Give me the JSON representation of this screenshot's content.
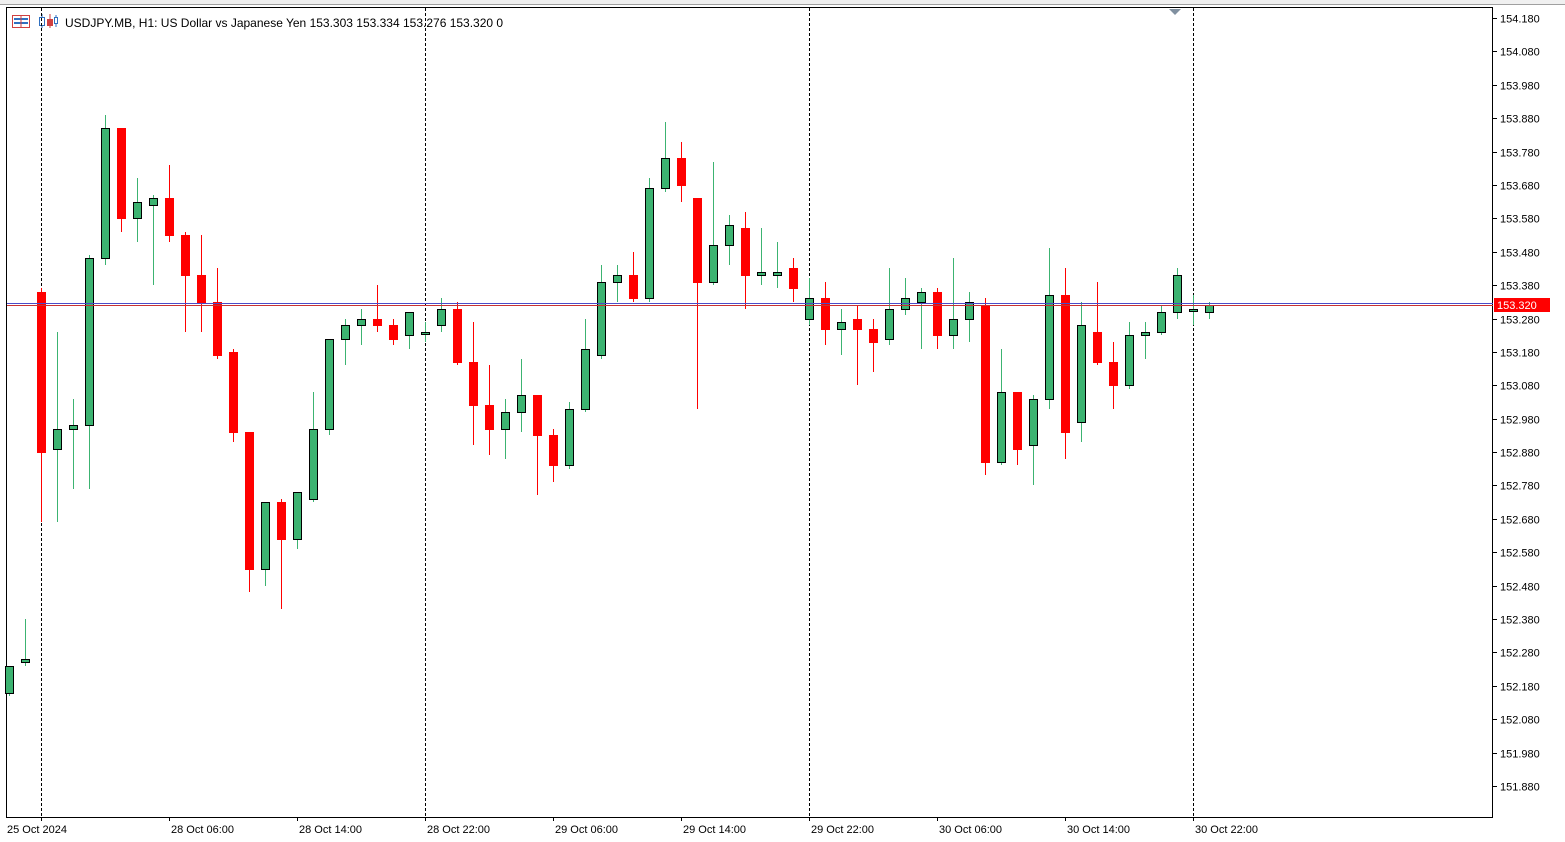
{
  "header": {
    "symbol_line": "USDJPY.MB, H1:  US Dollar vs Japanese Yen  153.303 153.334 153.276 153.320  0"
  },
  "icons": {
    "left": "bar-chart-menu-icon",
    "right": "candlestick-chart-icon"
  },
  "colors": {
    "bull": "#3cb371",
    "bear": "#ff0000",
    "outline": "#000000",
    "price_line_blue": "#4b4bc8",
    "price_line_red": "#c83232",
    "price_tag_bg": "#ff0000",
    "price_tag_text": "#ffffff"
  },
  "chart_data": {
    "type": "candlestick",
    "symbol": "USDJPY.MB",
    "timeframe": "H1",
    "description": "US Dollar vs Japanese Yen",
    "current_price": 153.32,
    "current_price_label": "153.320",
    "ylim": [
      151.82,
      154.205
    ],
    "y_ticks": [
      "154.180",
      "154.080",
      "153.980",
      "153.880",
      "153.780",
      "153.680",
      "153.580",
      "153.480",
      "153.380",
      "153.280",
      "153.180",
      "153.080",
      "152.980",
      "152.880",
      "152.780",
      "152.680",
      "152.580",
      "152.480",
      "152.380",
      "152.280",
      "152.180",
      "152.080",
      "151.980",
      "151.880"
    ],
    "x_labels": [
      "25 Oct 2024",
      "28 Oct 06:00",
      "28 Oct 14:00",
      "28 Oct 22:00",
      "29 Oct 06:00",
      "29 Oct 14:00",
      "29 Oct 22:00",
      "30 Oct 06:00",
      "30 Oct 14:00",
      "30 Oct 22:00"
    ],
    "period_separators": [
      2,
      26,
      50,
      74
    ],
    "candles": [
      {
        "o": 152.16,
        "h": 152.24,
        "l": 152.15,
        "c": 152.24
      },
      {
        "o": 152.25,
        "h": 152.38,
        "l": 152.24,
        "c": 152.26
      },
      {
        "o": 153.36,
        "h": 153.37,
        "l": 152.67,
        "c": 152.88
      },
      {
        "o": 152.89,
        "h": 153.24,
        "l": 152.67,
        "c": 152.95
      },
      {
        "o": 152.95,
        "h": 153.04,
        "l": 152.77,
        "c": 152.96
      },
      {
        "o": 152.96,
        "h": 153.47,
        "l": 152.77,
        "c": 153.46
      },
      {
        "o": 153.46,
        "h": 153.89,
        "l": 153.44,
        "c": 153.85
      },
      {
        "o": 153.85,
        "h": 153.85,
        "l": 153.54,
        "c": 153.58
      },
      {
        "o": 153.58,
        "h": 153.7,
        "l": 153.51,
        "c": 153.63
      },
      {
        "o": 153.62,
        "h": 153.65,
        "l": 153.38,
        "c": 153.64
      },
      {
        "o": 153.64,
        "h": 153.74,
        "l": 153.51,
        "c": 153.53
      },
      {
        "o": 153.53,
        "h": 153.54,
        "l": 153.24,
        "c": 153.41
      },
      {
        "o": 153.41,
        "h": 153.53,
        "l": 153.24,
        "c": 153.33
      },
      {
        "o": 153.33,
        "h": 153.43,
        "l": 153.16,
        "c": 153.17
      },
      {
        "o": 153.18,
        "h": 153.19,
        "l": 152.91,
        "c": 152.94
      },
      {
        "o": 152.94,
        "h": 152.94,
        "l": 152.46,
        "c": 152.53
      },
      {
        "o": 152.53,
        "h": 152.73,
        "l": 152.48,
        "c": 152.73
      },
      {
        "o": 152.73,
        "h": 152.74,
        "l": 152.41,
        "c": 152.62
      },
      {
        "o": 152.62,
        "h": 152.76,
        "l": 152.59,
        "c": 152.76
      },
      {
        "o": 152.74,
        "h": 153.06,
        "l": 152.73,
        "c": 152.95
      },
      {
        "o": 152.95,
        "h": 153.22,
        "l": 152.93,
        "c": 153.22
      },
      {
        "o": 153.22,
        "h": 153.28,
        "l": 153.14,
        "c": 153.26
      },
      {
        "o": 153.26,
        "h": 153.31,
        "l": 153.2,
        "c": 153.28
      },
      {
        "o": 153.28,
        "h": 153.38,
        "l": 153.24,
        "c": 153.26
      },
      {
        "o": 153.26,
        "h": 153.28,
        "l": 153.2,
        "c": 153.22
      },
      {
        "o": 153.23,
        "h": 153.3,
        "l": 153.19,
        "c": 153.3
      },
      {
        "o": 153.24,
        "h": 153.27,
        "l": 153.21,
        "c": 153.24
      },
      {
        "o": 153.26,
        "h": 153.34,
        "l": 153.24,
        "c": 153.31
      },
      {
        "o": 153.31,
        "h": 153.33,
        "l": 153.14,
        "c": 153.15
      },
      {
        "o": 153.15,
        "h": 153.27,
        "l": 152.9,
        "c": 153.02
      },
      {
        "o": 153.02,
        "h": 153.14,
        "l": 152.87,
        "c": 152.95
      },
      {
        "o": 152.95,
        "h": 153.04,
        "l": 152.86,
        "c": 153.0
      },
      {
        "o": 153.0,
        "h": 153.16,
        "l": 152.94,
        "c": 153.05
      },
      {
        "o": 153.05,
        "h": 153.05,
        "l": 152.75,
        "c": 152.93
      },
      {
        "o": 152.93,
        "h": 152.95,
        "l": 152.79,
        "c": 152.84
      },
      {
        "o": 152.84,
        "h": 153.03,
        "l": 152.83,
        "c": 153.01
      },
      {
        "o": 153.01,
        "h": 153.28,
        "l": 153.0,
        "c": 153.19
      },
      {
        "o": 153.17,
        "h": 153.44,
        "l": 153.16,
        "c": 153.39
      },
      {
        "o": 153.39,
        "h": 153.44,
        "l": 153.33,
        "c": 153.41
      },
      {
        "o": 153.41,
        "h": 153.48,
        "l": 153.33,
        "c": 153.34
      },
      {
        "o": 153.34,
        "h": 153.7,
        "l": 153.33,
        "c": 153.67
      },
      {
        "o": 153.67,
        "h": 153.87,
        "l": 153.66,
        "c": 153.76
      },
      {
        "o": 153.76,
        "h": 153.81,
        "l": 153.63,
        "c": 153.68
      },
      {
        "o": 153.64,
        "h": 153.64,
        "l": 153.01,
        "c": 153.39
      },
      {
        "o": 153.39,
        "h": 153.75,
        "l": 153.38,
        "c": 153.5
      },
      {
        "o": 153.5,
        "h": 153.59,
        "l": 153.44,
        "c": 153.56
      },
      {
        "o": 153.55,
        "h": 153.6,
        "l": 153.31,
        "c": 153.41
      },
      {
        "o": 153.41,
        "h": 153.55,
        "l": 153.38,
        "c": 153.42
      },
      {
        "o": 153.41,
        "h": 153.51,
        "l": 153.37,
        "c": 153.42
      },
      {
        "o": 153.43,
        "h": 153.46,
        "l": 153.33,
        "c": 153.37
      },
      {
        "o": 153.28,
        "h": 153.4,
        "l": 153.26,
        "c": 153.34
      },
      {
        "o": 153.34,
        "h": 153.39,
        "l": 153.2,
        "c": 153.25
      },
      {
        "o": 153.25,
        "h": 153.31,
        "l": 153.17,
        "c": 153.27
      },
      {
        "o": 153.28,
        "h": 153.32,
        "l": 153.08,
        "c": 153.25
      },
      {
        "o": 153.25,
        "h": 153.28,
        "l": 153.12,
        "c": 153.21
      },
      {
        "o": 153.22,
        "h": 153.43,
        "l": 153.2,
        "c": 153.31
      },
      {
        "o": 153.31,
        "h": 153.4,
        "l": 153.29,
        "c": 153.34
      },
      {
        "o": 153.33,
        "h": 153.37,
        "l": 153.19,
        "c": 153.36
      },
      {
        "o": 153.36,
        "h": 153.37,
        "l": 153.19,
        "c": 153.23
      },
      {
        "o": 153.23,
        "h": 153.46,
        "l": 153.19,
        "c": 153.28
      },
      {
        "o": 153.28,
        "h": 153.36,
        "l": 153.21,
        "c": 153.33
      },
      {
        "o": 153.32,
        "h": 153.34,
        "l": 152.81,
        "c": 152.85
      },
      {
        "o": 152.85,
        "h": 153.19,
        "l": 152.84,
        "c": 153.06
      },
      {
        "o": 153.06,
        "h": 153.06,
        "l": 152.84,
        "c": 152.89
      },
      {
        "o": 152.9,
        "h": 153.05,
        "l": 152.78,
        "c": 153.04
      },
      {
        "o": 153.04,
        "h": 153.49,
        "l": 153.01,
        "c": 153.35
      },
      {
        "o": 153.35,
        "h": 153.43,
        "l": 152.86,
        "c": 152.94
      },
      {
        "o": 152.97,
        "h": 153.33,
        "l": 152.91,
        "c": 153.26
      },
      {
        "o": 153.24,
        "h": 153.39,
        "l": 153.14,
        "c": 153.15
      },
      {
        "o": 153.15,
        "h": 153.21,
        "l": 153.01,
        "c": 153.08
      },
      {
        "o": 153.08,
        "h": 153.27,
        "l": 153.07,
        "c": 153.23
      },
      {
        "o": 153.23,
        "h": 153.27,
        "l": 153.16,
        "c": 153.24
      },
      {
        "o": 153.24,
        "h": 153.32,
        "l": 153.23,
        "c": 153.3
      },
      {
        "o": 153.3,
        "h": 153.43,
        "l": 153.28,
        "c": 153.41
      },
      {
        "o": 153.31,
        "h": 153.35,
        "l": 153.26,
        "c": 153.31
      },
      {
        "o": 153.3,
        "h": 153.33,
        "l": 153.28,
        "c": 153.32
      }
    ]
  }
}
